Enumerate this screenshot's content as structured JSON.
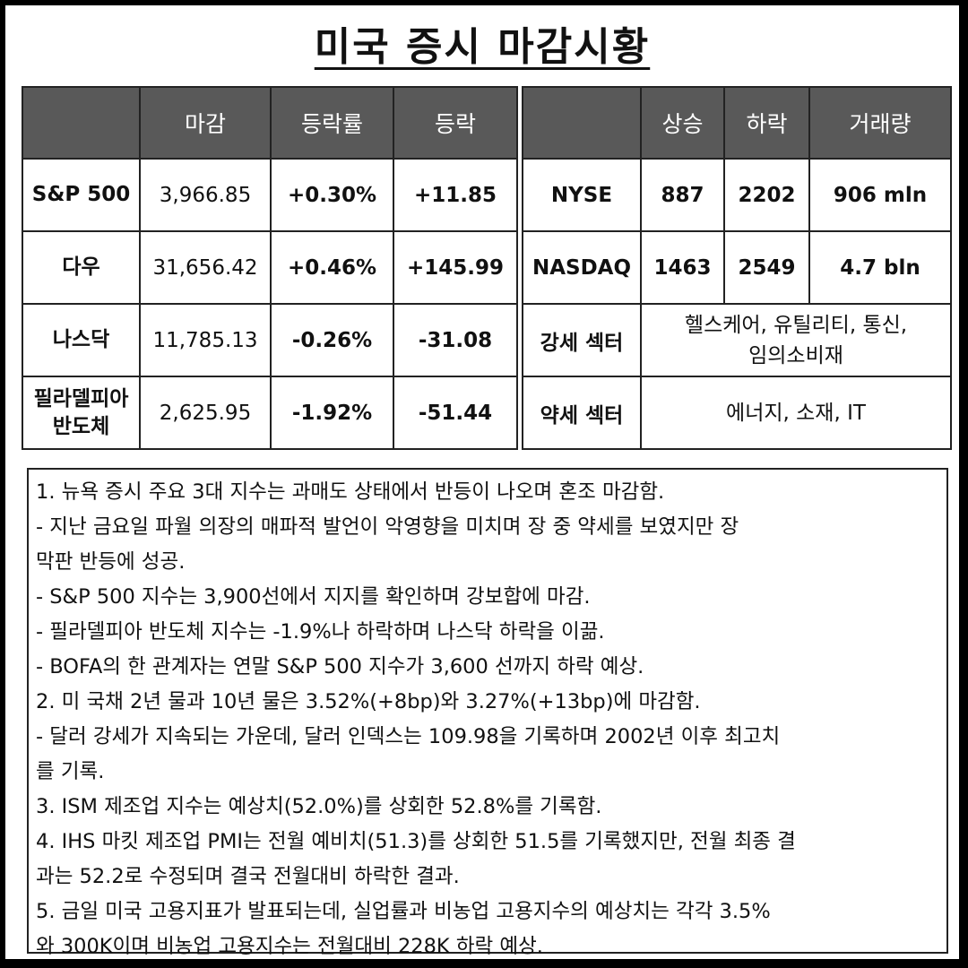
{
  "title": "미국 증시 마감시황",
  "left_table": {
    "headers": [
      "",
      "마감",
      "등락률",
      "등락"
    ],
    "rows": [
      {
        "name": "S&P 500",
        "close": "3,966.85",
        "pct": "+0.30%",
        "chg": "+11.85",
        "dir": "up"
      },
      {
        "name": "다우",
        "close": "31,656.42",
        "pct": "+0.46%",
        "chg": "+145.99",
        "dir": "up"
      },
      {
        "name": "나스닥",
        "close": "11,785.13",
        "pct": "-0.26%",
        "chg": "-31.08",
        "dir": "down"
      },
      {
        "name_line1": "필라델피아",
        "name_line2": "반도체",
        "close": "2,625.95",
        "pct": "-1.92%",
        "chg": "-51.44",
        "dir": "down"
      }
    ]
  },
  "right_table": {
    "headers": [
      "",
      "상승",
      "하락",
      "거래량"
    ],
    "rows": [
      {
        "name": "NYSE",
        "up": "887",
        "down": "2202",
        "volume": "906 mln"
      },
      {
        "name": "NASDAQ",
        "up": "1463",
        "down": "2549",
        "volume": "4.7 bln"
      }
    ],
    "strong": {
      "label": "강세 섹터",
      "line1": "헬스케어, 유틸리티, 통신,",
      "line2": "임의소비재"
    },
    "weak": {
      "label": "약세 섹터",
      "value": "에너지, 소재, IT"
    }
  },
  "notes": [
    "1. 뉴욕 증시 주요 3대 지수는 과매도 상태에서 반등이 나오며 혼조 마감함.",
    "- 지난 금요일 파월 의장의 매파적 발언이 악영향을 미치며 장 중 약세를 보였지만 장",
    "막판 반등에 성공.",
    "- S&P 500 지수는 3,900선에서 지지를 확인하며 강보합에 마감.",
    "- 필라델피아 반도체 지수는 -1.9%나 하락하며 나스닥 하락을 이끎.",
    "- BOFA의 한 관계자는 연말 S&P 500 지수가 3,600 선까지 하락 예상.",
    "2. 미 국채 2년 물과 10년 물은 3.52%(+8bp)와 3.27%(+13bp)에 마감함.",
    "- 달러 강세가 지속되는 가운데, 달러 인덱스는 109.98을 기록하며 2002년 이후 최고치",
    "를 기록.",
    "3. ISM 제조업 지수는 예상치(52.0%)를 상회한 52.8%를 기록함.",
    "4. IHS 마킷 제조업 PMI는 전월 예비치(51.3)를 상회한 51.5를 기록했지만, 전월 최종 결",
    "과는 52.2로 수정되며 결국 전월대비 하락한 결과.",
    "5. 금일 미국 고용지표가 발표되는데, 실업률과 비농업 고용지수의 예상치는 각각 3.5%",
    "와 300K이며 비농업 고용지수는 전월대비 228K 하락 예상."
  ],
  "colors": {
    "header_bg": "#595959",
    "up": "#e0202a",
    "down": "#1a2ad6"
  }
}
